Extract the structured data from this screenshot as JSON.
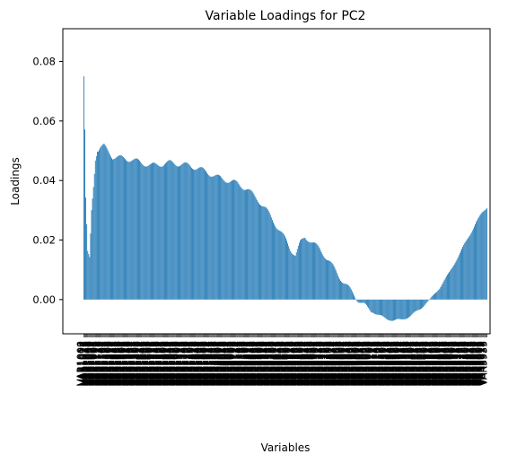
{
  "chart_data": {
    "type": "bar",
    "title": "Variable Loadings for PC2",
    "xlabel": "Variables",
    "ylabel": "Loadings",
    "ylim": [
      -0.0115,
      0.091
    ],
    "yticks": [
      0.0,
      0.02,
      0.04,
      0.06,
      0.08
    ],
    "ytick_labels": [
      "0.00",
      "0.02",
      "0.04",
      "0.06",
      "0.08"
    ],
    "grid": false,
    "bar_color": "#1f77b4",
    "x_tick_labels_note_hidden": "",
    "profile": [
      [
        0,
        0.075
      ],
      [
        1,
        0.057
      ],
      [
        2,
        0.034
      ],
      [
        4,
        0.016
      ],
      [
        6,
        0.014
      ],
      [
        8,
        0.03
      ],
      [
        10,
        0.038
      ],
      [
        12,
        0.047
      ],
      [
        14,
        0.05
      ],
      [
        17,
        0.051
      ],
      [
        21,
        0.0515
      ],
      [
        25,
        0.05
      ],
      [
        30,
        0.048
      ],
      [
        40,
        0.0475
      ],
      [
        50,
        0.047
      ],
      [
        60,
        0.046
      ],
      [
        70,
        0.045
      ],
      [
        80,
        0.0455
      ],
      [
        90,
        0.046
      ],
      [
        100,
        0.0455
      ],
      [
        110,
        0.045
      ],
      [
        120,
        0.044
      ],
      [
        130,
        0.0425
      ],
      [
        140,
        0.041
      ],
      [
        150,
        0.04
      ],
      [
        160,
        0.039
      ],
      [
        170,
        0.037
      ],
      [
        180,
        0.034
      ],
      [
        190,
        0.03
      ],
      [
        200,
        0.025
      ],
      [
        210,
        0.02
      ],
      [
        215,
        0.017
      ],
      [
        220,
        0.015
      ],
      [
        225,
        0.019
      ],
      [
        230,
        0.021
      ],
      [
        235,
        0.02
      ],
      [
        245,
        0.017
      ],
      [
        255,
        0.013
      ],
      [
        265,
        0.008
      ],
      [
        275,
        0.004
      ],
      [
        285,
        0.0
      ],
      [
        295,
        -0.003
      ],
      [
        305,
        -0.005
      ],
      [
        315,
        -0.0065
      ],
      [
        322,
        -0.007
      ],
      [
        330,
        -0.0068
      ],
      [
        340,
        -0.0055
      ],
      [
        350,
        -0.003
      ],
      [
        360,
        0.0
      ],
      [
        370,
        0.004
      ],
      [
        380,
        0.009
      ],
      [
        390,
        0.015
      ],
      [
        400,
        0.021
      ],
      [
        408,
        0.026
      ],
      [
        414,
        0.029
      ],
      [
        419,
        0.031
      ]
    ],
    "n_vars": 420,
    "tick_label_prefix": "VAR"
  }
}
